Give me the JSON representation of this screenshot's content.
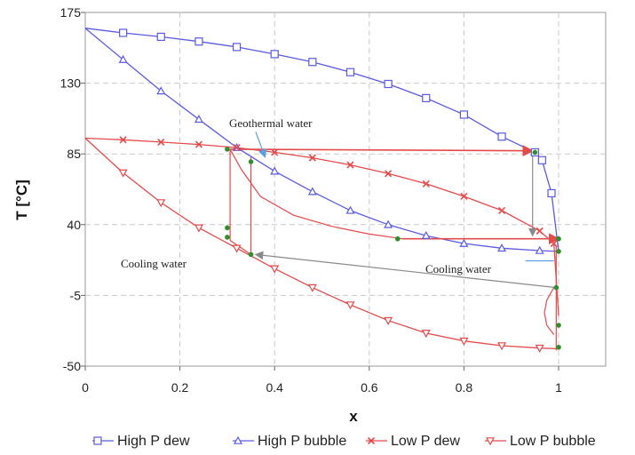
{
  "chart_data": {
    "type": "line",
    "title": "",
    "xlabel": "x",
    "ylabel": "T [°C]",
    "xlim": [
      0,
      1.1
    ],
    "ylim": [
      -50,
      175
    ],
    "xticks": [
      "0",
      "0.2",
      "0.4",
      "0.6",
      "0.8",
      "1"
    ],
    "yticks": [
      "-50",
      "-5",
      "40",
      "85",
      "130",
      "175"
    ],
    "grid": true,
    "legend_position": "bottom",
    "series": [
      {
        "name": "High P dew",
        "color": "#5a5ae0",
        "marker": "square",
        "x": [
          0,
          0.08,
          0.16,
          0.24,
          0.32,
          0.4,
          0.48,
          0.56,
          0.64,
          0.72,
          0.8,
          0.88,
          0.95,
          0.965,
          0.985,
          1.0
        ],
        "y": [
          165,
          162,
          159.5,
          156.5,
          153,
          148.5,
          143.5,
          137,
          129.5,
          120.5,
          110,
          96,
          86,
          81,
          60,
          23
        ]
      },
      {
        "name": "High P bubble",
        "color": "#5a5ae0",
        "marker": "triangle-up",
        "x": [
          0,
          0.08,
          0.16,
          0.24,
          0.32,
          0.4,
          0.48,
          0.56,
          0.64,
          0.72,
          0.8,
          0.88,
          0.96,
          1.0
        ],
        "y": [
          165,
          145,
          125,
          107,
          89,
          74,
          61,
          49,
          40,
          33,
          28,
          25,
          23.5,
          23
        ]
      },
      {
        "name": "Low P dew",
        "color": "#e34a4a",
        "marker": "x",
        "x": [
          0,
          0.08,
          0.16,
          0.24,
          0.32,
          0.4,
          0.48,
          0.56,
          0.64,
          0.72,
          0.8,
          0.88,
          0.96,
          0.99,
          1.0
        ],
        "y": [
          95,
          94,
          92.5,
          91,
          89,
          86,
          82.5,
          78,
          72.5,
          66,
          58,
          49,
          36,
          28,
          -18
        ]
      },
      {
        "name": "Low P bubble",
        "color": "#e34a4a",
        "marker": "triangle-down",
        "x": [
          0,
          0.08,
          0.16,
          0.24,
          0.32,
          0.4,
          0.48,
          0.56,
          0.64,
          0.72,
          0.8,
          0.88,
          0.96,
          1.0
        ],
        "y": [
          95,
          73,
          54,
          38,
          25,
          12,
          0,
          -11,
          -21,
          -29,
          -34,
          -37,
          -38.5,
          -39
        ]
      }
    ],
    "annotations": [
      "Geothermal water",
      "Cooling water",
      "Cooling water"
    ]
  }
}
